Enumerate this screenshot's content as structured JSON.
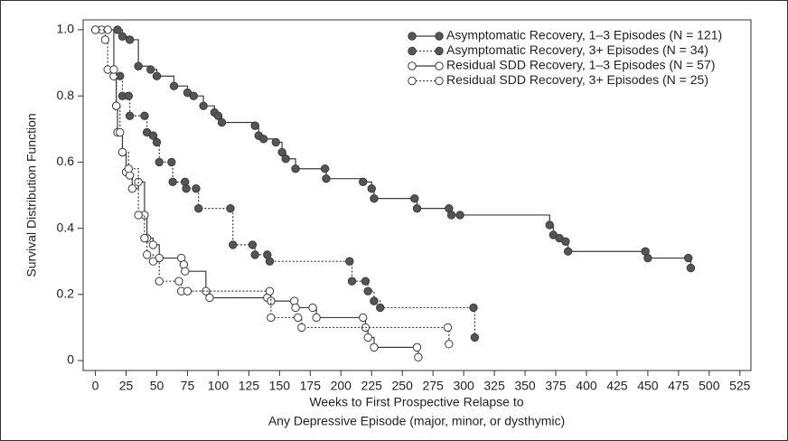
{
  "chart_data": {
    "type": "step",
    "y_label": "Survival Distribution Function",
    "x_label": [
      "Weeks to First Prospective Relapse to",
      "Any Depressive Episode (major, minor, or dysthymic)"
    ],
    "xlim": [
      -10,
      534
    ],
    "ylim": [
      -0.03,
      1.03
    ],
    "xticks": [
      0,
      25,
      50,
      75,
      100,
      125,
      150,
      175,
      200,
      225,
      250,
      275,
      300,
      325,
      350,
      375,
      400,
      425,
      450,
      475,
      500,
      525
    ],
    "yticks": [
      0,
      0.2,
      0.4,
      0.6,
      0.8,
      {
        "value": 1,
        "label": "1.0"
      }
    ],
    "legend": "upper right",
    "series": [
      {
        "name": "Asymptomatic Recovery, 1–3 Episodes (N = 121)",
        "color": "#3a3a3a",
        "marker_fill": "#555555",
        "line": "solid",
        "x": [
          18,
          22,
          28,
          35,
          45,
          50,
          64,
          75,
          80,
          88,
          97,
          100,
          103,
          130,
          133,
          137,
          147,
          152,
          155,
          163,
          187,
          188,
          218,
          225,
          227,
          260,
          262,
          288,
          290,
          297,
          370,
          373,
          378,
          383,
          385,
          448,
          450,
          483,
          485
        ],
        "values": [
          1.0,
          0.98,
          0.97,
          0.89,
          0.88,
          0.86,
          0.83,
          0.81,
          0.8,
          0.77,
          0.75,
          0.74,
          0.72,
          0.71,
          0.68,
          0.67,
          0.66,
          0.63,
          0.61,
          0.58,
          0.58,
          0.55,
          0.54,
          0.52,
          0.49,
          0.49,
          0.46,
          0.46,
          0.44,
          0.44,
          0.41,
          0.38,
          0.37,
          0.36,
          0.33,
          0.33,
          0.31,
          0.31,
          0.28
        ]
      },
      {
        "name": "Asymptomatic Recovery, 3+ Episodes (N = 34)",
        "color": "#3a3a3a",
        "marker_fill": "#555555",
        "line": "dotted",
        "x": [
          20,
          22,
          27,
          28,
          40,
          42,
          47,
          50,
          52,
          62,
          63,
          73,
          74,
          82,
          84,
          110,
          112,
          128,
          130,
          140,
          142,
          207,
          209,
          220,
          222,
          227,
          232,
          308,
          309
        ],
        "values": [
          0.86,
          0.8,
          0.8,
          0.74,
          0.74,
          0.69,
          0.68,
          0.66,
          0.6,
          0.6,
          0.54,
          0.54,
          0.52,
          0.52,
          0.46,
          0.46,
          0.35,
          0.35,
          0.32,
          0.32,
          0.3,
          0.3,
          0.24,
          0.24,
          0.21,
          0.18,
          0.16,
          0.16,
          0.07
        ]
      },
      {
        "name": "Residual SDD Recovery, 1–3 Episodes (N = 57)",
        "color": "#3a3a3a",
        "marker_fill": "#ffffff",
        "line": "solid",
        "x": [
          0,
          5,
          10,
          15,
          17,
          18,
          22,
          25,
          28,
          30,
          35,
          40,
          42,
          47,
          52,
          70,
          72,
          73,
          90,
          93,
          140,
          143,
          162,
          163,
          177,
          180,
          218,
          220,
          222,
          227,
          262,
          263
        ],
        "values": [
          1.0,
          1.0,
          1.0,
          0.86,
          0.77,
          0.69,
          0.63,
          0.57,
          0.56,
          0.52,
          0.54,
          0.44,
          0.37,
          0.35,
          0.31,
          0.31,
          0.29,
          0.27,
          0.21,
          0.19,
          0.19,
          0.18,
          0.18,
          0.16,
          0.16,
          0.13,
          0.13,
          0.1,
          0.07,
          0.04,
          0.04,
          0.01
        ]
      },
      {
        "name": "Residual SDD Recovery, 3+ Episodes (N = 25)",
        "color": "#3a3a3a",
        "marker_fill": "#ffffff",
        "line": "dotted",
        "x": [
          0,
          8,
          10,
          15,
          17,
          20,
          22,
          27,
          35,
          40,
          42,
          47,
          52,
          68,
          70,
          75,
          142,
          143,
          165,
          168,
          287,
          288
        ],
        "values": [
          1.0,
          0.97,
          0.88,
          0.88,
          0.77,
          0.69,
          0.63,
          0.58,
          0.44,
          0.37,
          0.32,
          0.3,
          0.24,
          0.24,
          0.21,
          0.21,
          0.21,
          0.13,
          0.13,
          0.1,
          0.1,
          0.05
        ]
      }
    ]
  }
}
